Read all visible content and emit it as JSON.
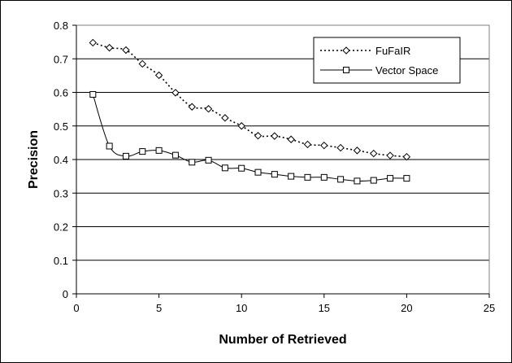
{
  "chart_data": {
    "type": "line",
    "title": "",
    "xlabel": "Number of Retrieved",
    "ylabel": "Precision",
    "xlim": [
      0,
      25
    ],
    "ylim": [
      0,
      0.8
    ],
    "xticks": [
      0,
      5,
      10,
      15,
      20,
      25
    ],
    "yticks": [
      0,
      0.1,
      0.2,
      0.3,
      0.4,
      0.5,
      0.6,
      0.7,
      0.8
    ],
    "xtick_labels": [
      "0",
      "5",
      "10",
      "15",
      "20",
      "25"
    ],
    "ytick_labels": [
      "0",
      "0.1",
      "0.2",
      "0.3",
      "0.4",
      "0.5",
      "0.6",
      "0.7",
      "0.8"
    ],
    "grid": "horizontal",
    "legend_position": "top-right",
    "x": [
      1,
      2,
      3,
      4,
      5,
      6,
      7,
      8,
      9,
      10,
      11,
      12,
      13,
      14,
      15,
      16,
      17,
      18,
      19,
      20
    ],
    "series": [
      {
        "name": "FuFaIR",
        "line_style": "dotted",
        "marker": "diamond",
        "color": "#000000",
        "values": [
          0.748,
          0.733,
          0.726,
          0.685,
          0.651,
          0.599,
          0.557,
          0.551,
          0.524,
          0.5,
          0.471,
          0.47,
          0.46,
          0.445,
          0.442,
          0.435,
          0.427,
          0.418,
          0.412,
          0.408
        ]
      },
      {
        "name": "Vector Space",
        "line_style": "solid",
        "marker": "square",
        "color": "#000000",
        "values": [
          0.594,
          0.44,
          0.41,
          0.424,
          0.427,
          0.413,
          0.392,
          0.398,
          0.375,
          0.374,
          0.362,
          0.356,
          0.35,
          0.347,
          0.347,
          0.341,
          0.336,
          0.338,
          0.344,
          0.344
        ]
      }
    ]
  }
}
